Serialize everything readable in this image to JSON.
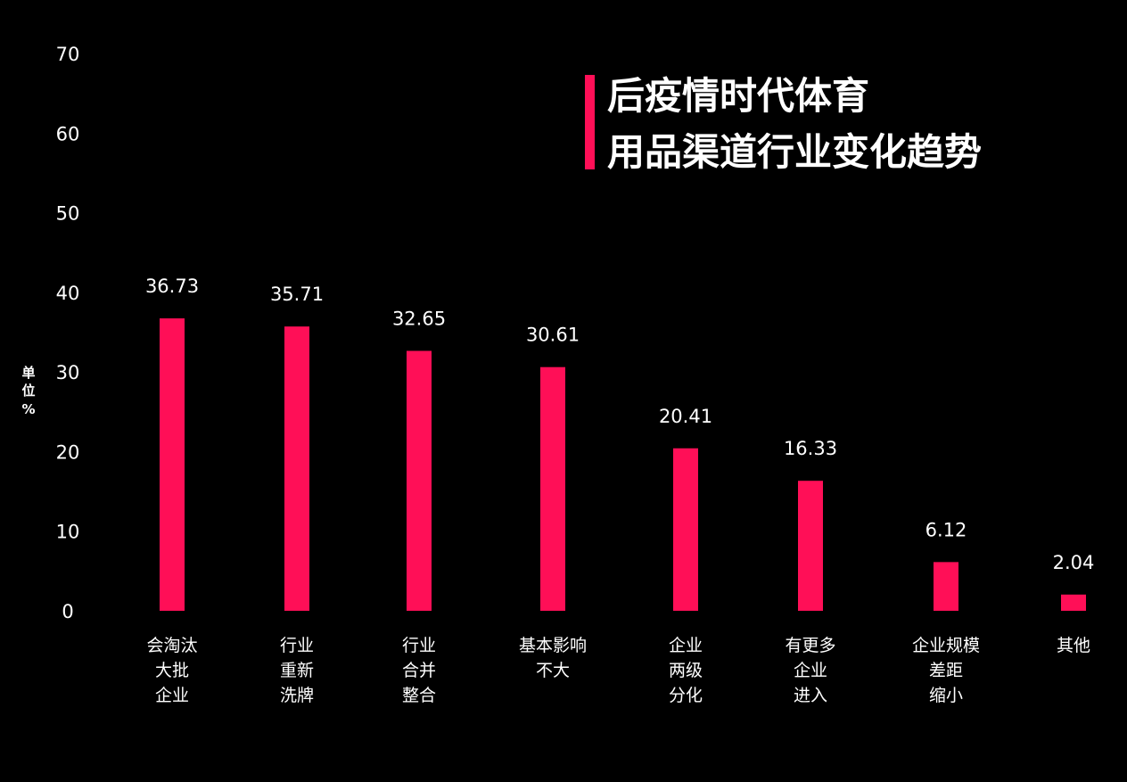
{
  "chart_data": {
    "type": "bar",
    "title_lines": [
      "后疫情时代体育",
      "用品渠道行业变化趋势"
    ],
    "ylabel_chars": [
      "单",
      "位",
      "%"
    ],
    "ylim": [
      0,
      70
    ],
    "yticks": [
      0,
      10,
      20,
      30,
      40,
      50,
      60,
      70
    ],
    "grid": false,
    "categories": [
      [
        "会淘汰",
        "大批",
        "企业"
      ],
      [
        "行业",
        "重新",
        "洗牌"
      ],
      [
        "行业",
        "合并",
        "整合"
      ],
      [
        "基本影响",
        "不大"
      ],
      [
        "企业",
        "两级",
        "分化"
      ],
      [
        "有更多",
        "企业",
        "进入"
      ],
      [
        "企业规模",
        "差距",
        "缩小"
      ],
      [
        "其他"
      ]
    ],
    "values": [
      36.73,
      35.71,
      32.65,
      30.61,
      20.41,
      16.33,
      6.12,
      2.04
    ],
    "value_labels": [
      "36.73",
      "35.71",
      "32.65",
      "30.61",
      "20.41",
      "16.33",
      "6.12",
      "2.04"
    ]
  },
  "colors": {
    "background": "#000000",
    "bar": "#ff0f57",
    "text": "#ffffff",
    "accent": "#ff0f57"
  }
}
